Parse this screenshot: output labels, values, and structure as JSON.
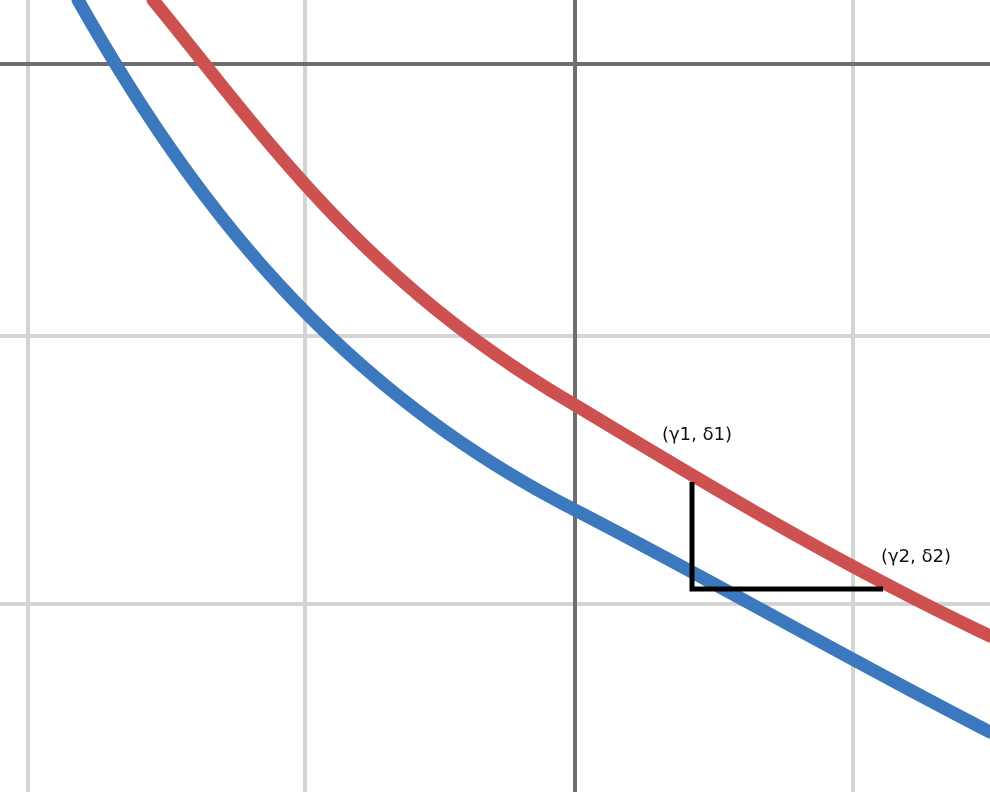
{
  "colors": {
    "background": "#ffffff",
    "grid": "#d4d4d4",
    "axis": "#6e6e6e",
    "upper_curve": "#cd5151",
    "lower_curve": "#3b78bd",
    "marker": "#000000"
  },
  "labels": {
    "point1": "(γ1, δ1)",
    "point2": "(γ2, δ2)"
  }
}
